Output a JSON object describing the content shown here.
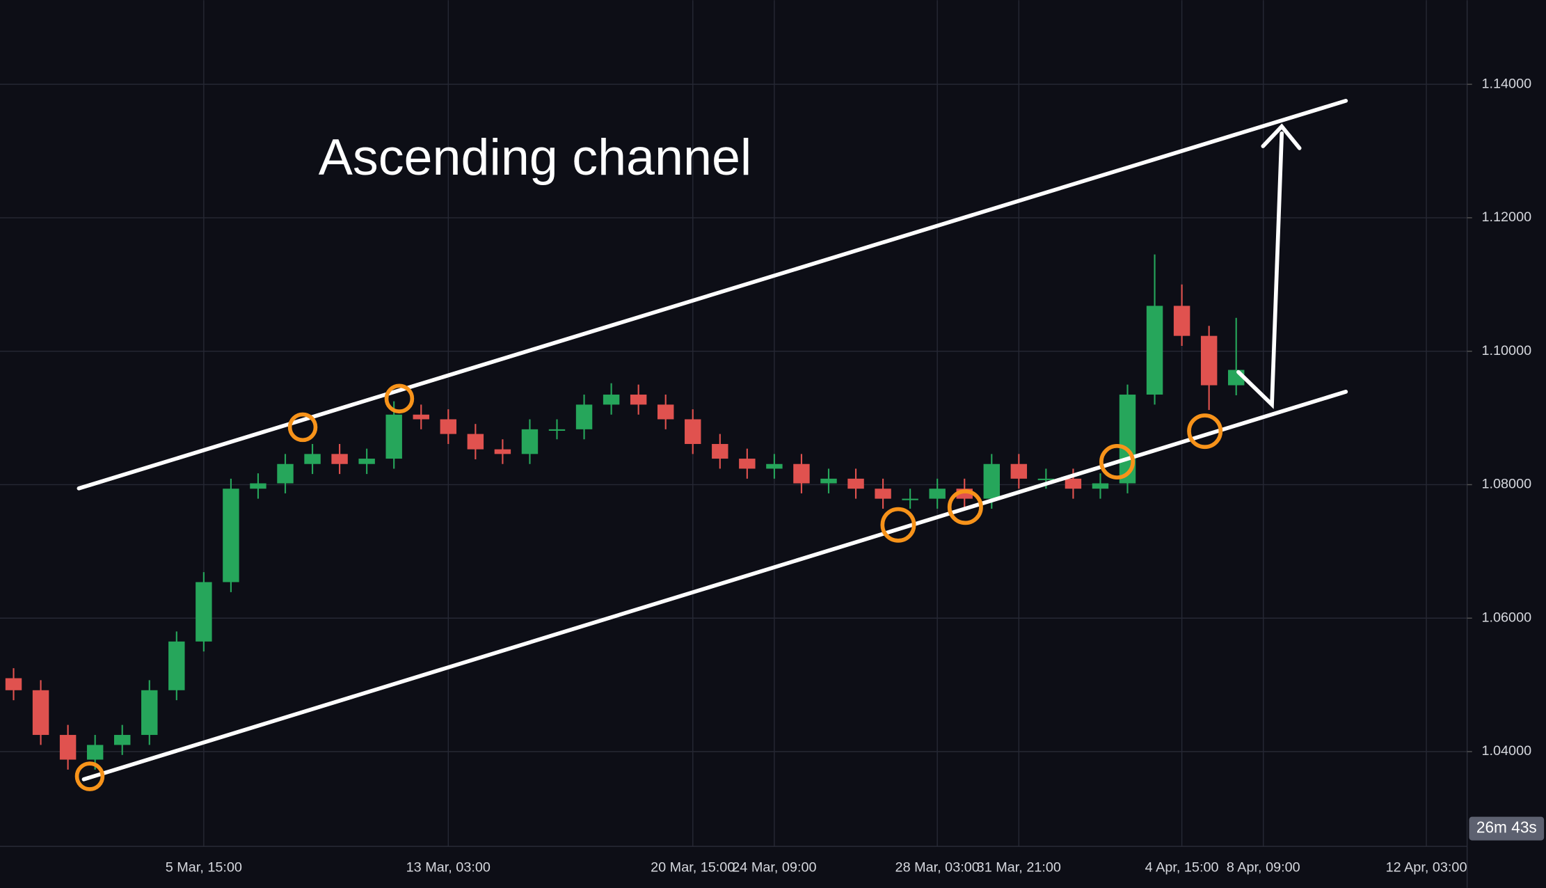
{
  "chart_data": {
    "type": "candlestick",
    "title": "Ascending channel",
    "countdown": "26m 43s",
    "categories": [
      null,
      null,
      null,
      null,
      null,
      null,
      null,
      "5 Mar, 15:00",
      null,
      null,
      null,
      null,
      null,
      null,
      null,
      null,
      "13 Mar, 03:00",
      null,
      null,
      null,
      null,
      null,
      null,
      null,
      null,
      "20 Mar, 15:00",
      null,
      null,
      "24 Mar, 09:00",
      null,
      null,
      null,
      null,
      null,
      "28 Mar, 03:00",
      null,
      null,
      "31 Mar, 21:00",
      null,
      null,
      null,
      null,
      null,
      "4 Apr, 15:00",
      null,
      null,
      "8 Apr, 09:00",
      null,
      null,
      null,
      null,
      null,
      "12 Apr, 03:00",
      null
    ],
    "open": [
      1.051,
      1.0492,
      1.0425,
      1.0388,
      1.041,
      1.0425,
      1.0492,
      1.0565,
      1.0654,
      1.0794,
      1.0802,
      1.0831,
      1.0846,
      1.0831,
      1.0839,
      1.0905,
      1.0898,
      1.0876,
      1.0853,
      1.0846,
      1.0883,
      1.0883,
      1.092,
      1.0935,
      1.092,
      1.0898,
      1.0861,
      1.0839,
      1.0824,
      1.0831,
      1.0802,
      1.0809,
      1.0794,
      1.0779,
      1.0779,
      1.0794,
      1.0779,
      1.0831,
      1.0809,
      1.0809,
      1.0794,
      1.0802,
      1.0935,
      1.1068,
      1.1023,
      1.0949,
      null,
      null,
      null,
      null,
      null,
      null,
      null,
      null
    ],
    "high": [
      1.0525,
      1.0507,
      1.044,
      1.0425,
      1.044,
      1.0507,
      1.058,
      1.0669,
      1.0809,
      1.0817,
      1.0846,
      1.0861,
      1.0861,
      1.0854,
      1.0925,
      1.092,
      1.0913,
      1.0891,
      1.0868,
      1.0898,
      1.0898,
      1.0935,
      1.0952,
      1.095,
      1.0935,
      1.0913,
      1.0876,
      1.0854,
      1.0846,
      1.0846,
      1.0824,
      1.0824,
      1.0809,
      1.0794,
      1.0809,
      1.0809,
      1.0846,
      1.0846,
      1.0824,
      1.0824,
      1.0817,
      1.095,
      1.1145,
      1.11,
      1.1038,
      1.105,
      null,
      null,
      null,
      null,
      null,
      null,
      null,
      null
    ],
    "low": [
      1.0477,
      1.041,
      1.0373,
      1.0373,
      1.0395,
      1.041,
      1.0477,
      1.055,
      1.0639,
      1.0779,
      1.0787,
      1.0816,
      1.0816,
      1.0816,
      1.0824,
      1.0883,
      1.0861,
      1.0838,
      1.0831,
      1.0831,
      1.0868,
      1.0868,
      1.0905,
      1.0905,
      1.0883,
      1.0846,
      1.0824,
      1.0809,
      1.0809,
      1.0787,
      1.0787,
      1.0779,
      1.0764,
      1.0764,
      1.0764,
      1.0764,
      1.0764,
      1.0794,
      1.0794,
      1.0779,
      1.0779,
      1.0787,
      1.092,
      1.1008,
      1.0912,
      1.0934,
      null,
      null,
      null,
      null,
      null,
      null,
      null,
      null
    ],
    "close": [
      1.0492,
      1.0425,
      1.0388,
      1.041,
      1.0425,
      1.0492,
      1.0565,
      1.0654,
      1.0794,
      1.0802,
      1.0831,
      1.0846,
      1.0831,
      1.0839,
      1.0905,
      1.0898,
      1.0876,
      1.0853,
      1.0846,
      1.0883,
      1.0883,
      1.092,
      1.0935,
      1.092,
      1.0898,
      1.0861,
      1.0839,
      1.0824,
      1.0831,
      1.0802,
      1.0809,
      1.0794,
      1.0779,
      1.0779,
      1.0794,
      1.0779,
      1.0831,
      1.0809,
      1.0809,
      1.0794,
      1.0802,
      1.0935,
      1.1068,
      1.1023,
      1.0949,
      1.0972,
      null,
      null,
      null,
      null,
      null,
      null,
      null,
      null
    ],
    "up_color": "#26a65b",
    "down_color": "#e0524f",
    "ylim": [
      1.0258,
      1.1526
    ],
    "yticks": [
      {
        "value": 1.04,
        "label": "1.04000"
      },
      {
        "value": 1.06,
        "label": "1.06000"
      },
      {
        "value": 1.08,
        "label": "1.08000"
      },
      {
        "value": 1.1,
        "label": "1.10000"
      },
      {
        "value": 1.12,
        "label": "1.12000"
      },
      {
        "value": 1.14,
        "label": "1.14000"
      }
    ],
    "grid": true
  }
}
